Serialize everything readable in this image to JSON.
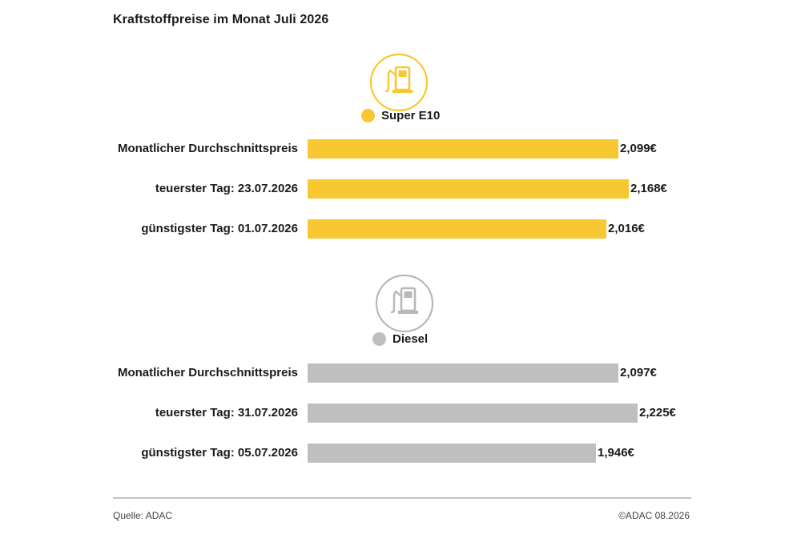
{
  "title": "Kraftstoffpreise im Monat Juli 2026",
  "colors": {
    "super": "#f8c832",
    "diesel": "#bfbfbf",
    "icon_super": "#f8c832",
    "icon_diesel": "#b8b8b8"
  },
  "icons": {
    "super": "fuel-pump-icon",
    "diesel": "fuel-pump-icon"
  },
  "chart_data": [
    {
      "type": "bar",
      "orientation": "horizontal",
      "series_name": "Super E10",
      "categories": [
        "Monatlicher Durchschnittspreis",
        "teuerster Tag: 23.07.2026",
        "günstigster Tag: 01.07.2026"
      ],
      "values": [
        2.099,
        2.168,
        2.016
      ],
      "value_labels": [
        "2,099€",
        "2,168€",
        "2,016€"
      ],
      "grid": false,
      "legend": "top"
    },
    {
      "type": "bar",
      "orientation": "horizontal",
      "series_name": "Diesel",
      "categories": [
        "Monatlicher Durchschnittspreis",
        "teuerster Tag: 31.07.2026",
        "günstigster Tag: 05.07.2026"
      ],
      "values": [
        2.097,
        2.225,
        1.946
      ],
      "value_labels": [
        "2,097€",
        "2,225€",
        "1,946€"
      ],
      "grid": false,
      "legend": "top"
    }
  ],
  "footer": {
    "source": "Quelle: ADAC",
    "copyright": "©ADAC 08.2026"
  }
}
